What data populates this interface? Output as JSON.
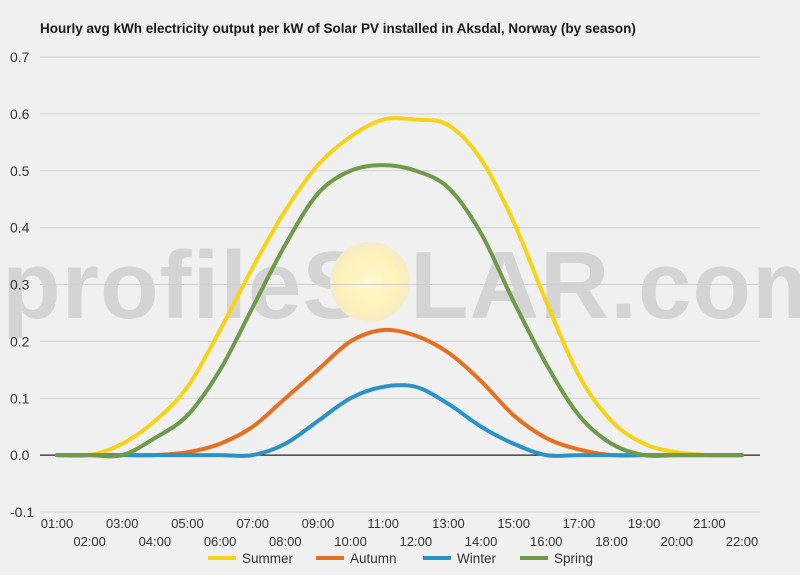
{
  "chart_data": {
    "type": "line",
    "title": "Hourly avg kWh electricity output per kW of Solar PV installed in Aksdal, Norway (by season)",
    "xlabel": "",
    "ylabel": "",
    "ylim": [
      -0.1,
      0.7
    ],
    "yticks": [
      "0.7",
      "0.6",
      "0.5",
      "0.4",
      "0.3",
      "0.2",
      "0.1",
      "0.0",
      "-0.1"
    ],
    "categories": [
      "01:00",
      "02:00",
      "03:00",
      "04:00",
      "05:00",
      "06:00",
      "07:00",
      "08:00",
      "09:00",
      "10:00",
      "11:00",
      "12:00",
      "13:00",
      "14:00",
      "15:00",
      "16:00",
      "17:00",
      "18:00",
      "19:00",
      "20:00",
      "21:00",
      "22:00"
    ],
    "grid": true,
    "legend_position": "bottom",
    "series": [
      {
        "name": "Summer",
        "color": "#f7d317",
        "values": [
          0.0,
          0.0,
          0.02,
          0.06,
          0.12,
          0.22,
          0.33,
          0.43,
          0.51,
          0.56,
          0.59,
          0.59,
          0.58,
          0.52,
          0.41,
          0.27,
          0.14,
          0.06,
          0.02,
          0.005,
          0.0,
          0.0
        ]
      },
      {
        "name": "Autumn",
        "color": "#e57021",
        "values": [
          0.0,
          0.0,
          0.0,
          0.0,
          0.005,
          0.02,
          0.05,
          0.1,
          0.15,
          0.2,
          0.22,
          0.21,
          0.18,
          0.13,
          0.07,
          0.03,
          0.01,
          0.0,
          0.0,
          0.0,
          0.0,
          0.0
        ]
      },
      {
        "name": "Winter",
        "color": "#2a93c6",
        "values": [
          0.0,
          0.0,
          0.0,
          0.0,
          0.0,
          0.0,
          0.0,
          0.02,
          0.06,
          0.1,
          0.12,
          0.12,
          0.09,
          0.05,
          0.02,
          0.0,
          0.0,
          0.0,
          0.0,
          0.0,
          0.0,
          0.0
        ]
      },
      {
        "name": "Spring",
        "color": "#6e9a4a",
        "values": [
          0.0,
          0.0,
          0.0,
          0.03,
          0.07,
          0.15,
          0.26,
          0.37,
          0.46,
          0.5,
          0.51,
          0.5,
          0.47,
          0.39,
          0.27,
          0.16,
          0.07,
          0.02,
          0.0,
          0.0,
          0.0,
          0.0
        ]
      }
    ]
  },
  "watermark": {
    "left_text": "profileS",
    "circle_text": "O",
    "right_text": "LAR.com"
  }
}
